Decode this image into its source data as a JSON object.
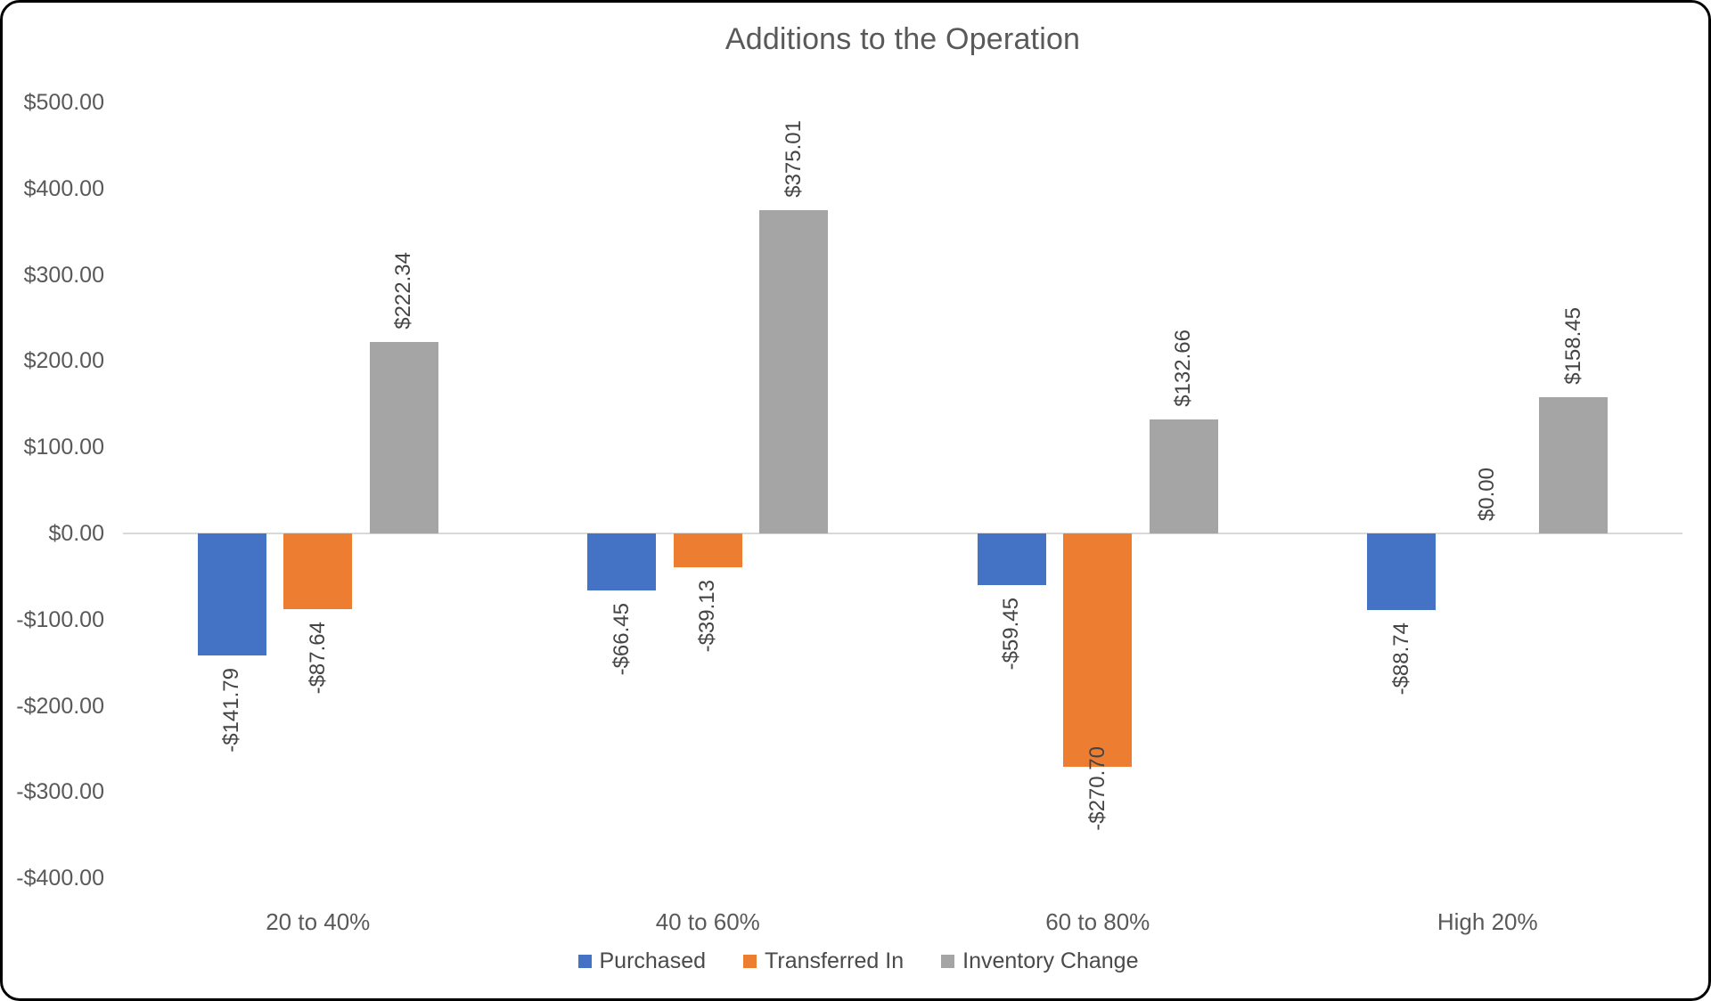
{
  "chart_data": {
    "type": "bar",
    "title": "Additions to the Operation",
    "categories": [
      "20 to 40%",
      "40 to 60%",
      "60 to 80%",
      "High 20%"
    ],
    "series": [
      {
        "name": "Purchased",
        "color": "#4472C4",
        "values": [
          -141.79,
          -66.45,
          -59.45,
          -88.74
        ],
        "labels": [
          "-$141.79",
          "-$66.45",
          "-$59.45",
          "-$88.74"
        ]
      },
      {
        "name": "Transferred In",
        "color": "#ED7D31",
        "values": [
          -87.64,
          -39.13,
          -270.7,
          0.0
        ],
        "labels": [
          "-$87.64",
          "-$39.13",
          "-$270.70",
          "$0.00"
        ]
      },
      {
        "name": "Inventory Change",
        "color": "#A5A5A5",
        "values": [
          222.34,
          375.01,
          132.66,
          158.45
        ],
        "labels": [
          "$222.34",
          "$375.01",
          "$132.66",
          "$158.45"
        ]
      }
    ],
    "y_axis": {
      "min": -400,
      "max": 500,
      "step": 100,
      "tick_labels": [
        "$500.00",
        "$400.00",
        "$300.00",
        "$200.00",
        "$100.00",
        "$0.00",
        "-$100.00",
        "-$200.00",
        "-$300.00",
        "-$400.00"
      ],
      "tick_values": [
        500,
        400,
        300,
        200,
        100,
        0,
        -100,
        -200,
        -300,
        -400
      ]
    },
    "legend": {
      "position": "bottom",
      "entries": [
        "Purchased",
        "Transferred In",
        "Inventory Change"
      ]
    },
    "grid": false,
    "axis_line_color": "#D9D9D9",
    "text_color": "#595959"
  }
}
